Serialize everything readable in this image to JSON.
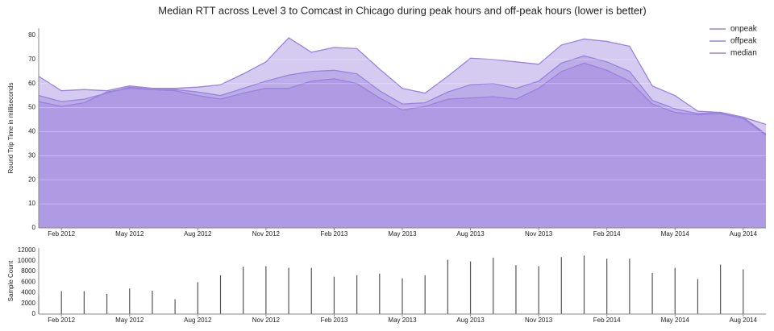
{
  "chart_data": [
    {
      "type": "area",
      "title": "Median RTT across Level 3 to Comcast in Chicago during peak hours and off-peak hours (lower is better)",
      "y_label": "Round Trip Time in milliseconds",
      "categories": [
        null,
        "Feb 2012",
        null,
        null,
        "May 2012",
        null,
        null,
        "Aug 2012",
        null,
        null,
        "Nov 2012",
        null,
        null,
        "Feb 2013",
        null,
        null,
        "May 2013",
        null,
        null,
        "Aug 2013",
        null,
        null,
        "Nov 2013",
        null,
        null,
        "Feb 2014",
        null,
        null,
        "May 2014",
        null,
        null,
        "Aug 2014",
        null
      ],
      "series": [
        {
          "name": "onpeak",
          "color": "#9a82dd",
          "values": [
            63,
            57,
            57.5,
            57,
            59,
            58,
            58,
            58.5,
            59.5,
            64,
            69,
            79,
            73,
            75,
            74.5,
            66,
            58,
            56,
            63,
            70.5,
            70,
            69,
            68,
            76,
            78.5,
            77.5,
            75.5,
            59,
            55,
            48.5,
            48,
            46,
            43
          ]
        },
        {
          "name": "offpeak",
          "color": "#9a82dd",
          "values": [
            55,
            52.5,
            53.5,
            56,
            58.5,
            57.5,
            57.5,
            56.5,
            55,
            58,
            61,
            63.5,
            65,
            65.5,
            64,
            57,
            51.5,
            52,
            56.5,
            59.5,
            60,
            58,
            61,
            68.5,
            71.5,
            69,
            65,
            53,
            49.5,
            47.5,
            48,
            46,
            39
          ]
        },
        {
          "name": "median",
          "color": "#9a82dd",
          "values": [
            52.5,
            50.5,
            52,
            56.5,
            58,
            57.5,
            57,
            55,
            53.5,
            56,
            58,
            58,
            61,
            62,
            60,
            54,
            49,
            50.5,
            53.5,
            54,
            54.5,
            53.5,
            58,
            65,
            68.5,
            65.5,
            61,
            51.5,
            48,
            47,
            47.5,
            45.5,
            38.5
          ]
        }
      ],
      "ylim": [
        0,
        83
      ],
      "yticks": [
        0,
        10,
        20,
        30,
        40,
        50,
        60,
        70,
        80
      ],
      "grid": true,
      "legend": "upper right"
    },
    {
      "type": "bar",
      "y_label": "Sample Count",
      "categories": [
        null,
        "Feb 2012",
        null,
        null,
        "May 2012",
        null,
        null,
        "Aug 2012",
        null,
        null,
        "Nov 2012",
        null,
        null,
        "Feb 2013",
        null,
        null,
        "May 2013",
        null,
        null,
        "Aug 2013",
        null,
        null,
        "Nov 2013",
        null,
        null,
        "Feb 2014",
        null,
        null,
        "May 2014",
        null,
        null,
        "Aug 2014",
        null
      ],
      "values": [
        3500,
        4300,
        4300,
        3800,
        4800,
        4400,
        2800,
        6000,
        7300,
        8900,
        9000,
        8700,
        8700,
        7000,
        7300,
        7600,
        6700,
        7300,
        10200,
        9900,
        10600,
        9200,
        9000,
        10700,
        11000,
        10400,
        10400,
        7700,
        8700,
        6600,
        9300,
        8400,
        null
      ],
      "color": "#555555",
      "ylim": [
        0,
        12400
      ],
      "yticks": [
        0,
        2000,
        4000,
        6000,
        8000,
        10000,
        12000
      ],
      "grid": false
    }
  ]
}
